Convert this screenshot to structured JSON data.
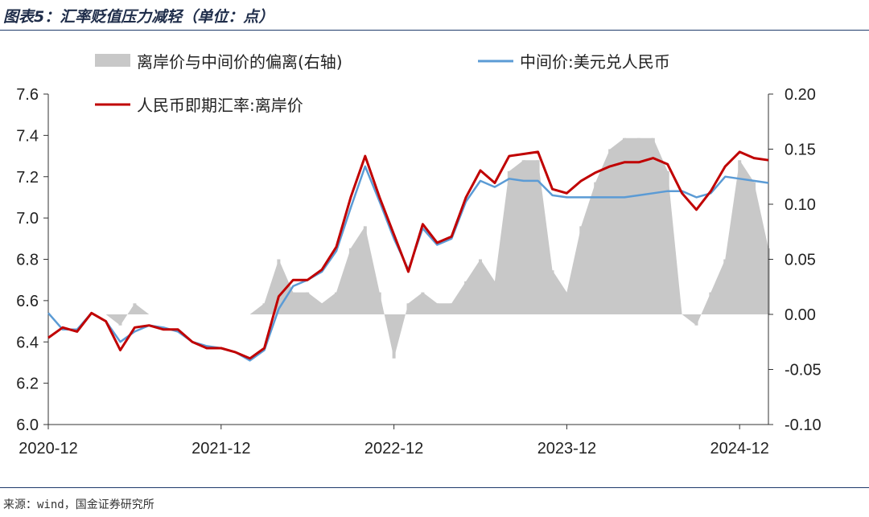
{
  "header": {
    "title": "图表5：汇率贬值压力减轻（单位：点）"
  },
  "footer": {
    "source": "来源：wind，国金证券研究所"
  },
  "colors": {
    "spread": "#c8c8c8",
    "central_parity": "#5b9bd5",
    "offshore": "#c00000",
    "rule": "#1f3a6b"
  },
  "chart_data": {
    "type": "line",
    "x_tick_labels": [
      "2020-12",
      "2021-12",
      "2022-12",
      "2023-12",
      "2024-12"
    ],
    "left_axis": {
      "ylim": [
        6.0,
        7.6
      ],
      "tick_labels": [
        "6.0",
        "6.2",
        "6.4",
        "6.6",
        "6.8",
        "7.0",
        "7.2",
        "7.4",
        "7.6"
      ]
    },
    "right_axis": {
      "ylim": [
        -0.1,
        0.2
      ],
      "tick_labels": [
        "-0.10",
        "-0.05",
        "0.00",
        "0.05",
        "0.10",
        "0.15",
        "0.20"
      ]
    },
    "legend": {
      "spread": "离岸价与中间价的偏离(右轴)",
      "central_parity": "中间价:美元兑人民币",
      "offshore": "人民币即期汇率:离岸价"
    },
    "series": [
      {
        "key": "offshore",
        "name": "人民币即期汇率:离岸价",
        "axis": "left",
        "points": [
          [
            "2020-12",
            6.42
          ],
          [
            "2021-01",
            6.47
          ],
          [
            "2021-02",
            6.45
          ],
          [
            "2021-03",
            6.54
          ],
          [
            "2021-04",
            6.5
          ],
          [
            "2021-05",
            6.36
          ],
          [
            "2021-06",
            6.47
          ],
          [
            "2021-07",
            6.48
          ],
          [
            "2021-08",
            6.46
          ],
          [
            "2021-09",
            6.46
          ],
          [
            "2021-10",
            6.4
          ],
          [
            "2021-11",
            6.37
          ],
          [
            "2021-12",
            6.37
          ],
          [
            "2022-01",
            6.35
          ],
          [
            "2022-02",
            6.32
          ],
          [
            "2022-03",
            6.37
          ],
          [
            "2022-04",
            6.62
          ],
          [
            "2022-05",
            6.7
          ],
          [
            "2022-06",
            6.7
          ],
          [
            "2022-07",
            6.75
          ],
          [
            "2022-08",
            6.86
          ],
          [
            "2022-09",
            7.1
          ],
          [
            "2022-10",
            7.3
          ],
          [
            "2022-11",
            7.1
          ],
          [
            "2022-12",
            6.92
          ],
          [
            "2023-01",
            6.74
          ],
          [
            "2023-02",
            6.97
          ],
          [
            "2023-03",
            6.88
          ],
          [
            "2023-04",
            6.91
          ],
          [
            "2023-05",
            7.1
          ],
          [
            "2023-06",
            7.23
          ],
          [
            "2023-07",
            7.17
          ],
          [
            "2023-08",
            7.3
          ],
          [
            "2023-09",
            7.31
          ],
          [
            "2023-10",
            7.32
          ],
          [
            "2023-11",
            7.14
          ],
          [
            "2023-12",
            7.12
          ],
          [
            "2024-01",
            7.18
          ],
          [
            "2024-02",
            7.22
          ],
          [
            "2024-03",
            7.25
          ],
          [
            "2024-04",
            7.27
          ],
          [
            "2024-05",
            7.27
          ],
          [
            "2024-06",
            7.29
          ],
          [
            "2024-07",
            7.26
          ],
          [
            "2024-08",
            7.12
          ],
          [
            "2024-09",
            7.04
          ],
          [
            "2024-10",
            7.13
          ],
          [
            "2024-11",
            7.25
          ],
          [
            "2024-12",
            7.32
          ],
          [
            "2025-01",
            7.29
          ],
          [
            "2025-02",
            7.28
          ]
        ]
      },
      {
        "key": "central_parity",
        "name": "中间价:美元兑人民币",
        "axis": "left",
        "points": [
          [
            "2020-12",
            6.54
          ],
          [
            "2021-01",
            6.46
          ],
          [
            "2021-02",
            6.46
          ],
          [
            "2021-03",
            6.54
          ],
          [
            "2021-04",
            6.5
          ],
          [
            "2021-05",
            6.4
          ],
          [
            "2021-06",
            6.45
          ],
          [
            "2021-07",
            6.48
          ],
          [
            "2021-08",
            6.47
          ],
          [
            "2021-09",
            6.45
          ],
          [
            "2021-10",
            6.4
          ],
          [
            "2021-11",
            6.38
          ],
          [
            "2021-12",
            6.37
          ],
          [
            "2022-01",
            6.35
          ],
          [
            "2022-02",
            6.31
          ],
          [
            "2022-03",
            6.36
          ],
          [
            "2022-04",
            6.56
          ],
          [
            "2022-05",
            6.67
          ],
          [
            "2022-06",
            6.7
          ],
          [
            "2022-07",
            6.74
          ],
          [
            "2022-08",
            6.84
          ],
          [
            "2022-09",
            7.05
          ],
          [
            "2022-10",
            7.25
          ],
          [
            "2022-11",
            7.08
          ],
          [
            "2022-12",
            6.9
          ],
          [
            "2023-01",
            6.75
          ],
          [
            "2023-02",
            6.95
          ],
          [
            "2023-03",
            6.87
          ],
          [
            "2023-04",
            6.9
          ],
          [
            "2023-05",
            7.08
          ],
          [
            "2023-06",
            7.18
          ],
          [
            "2023-07",
            7.15
          ],
          [
            "2023-08",
            7.19
          ],
          [
            "2023-09",
            7.18
          ],
          [
            "2023-10",
            7.18
          ],
          [
            "2023-11",
            7.11
          ],
          [
            "2023-12",
            7.1
          ],
          [
            "2024-01",
            7.1
          ],
          [
            "2024-02",
            7.1
          ],
          [
            "2024-03",
            7.1
          ],
          [
            "2024-04",
            7.1
          ],
          [
            "2024-05",
            7.11
          ],
          [
            "2024-06",
            7.12
          ],
          [
            "2024-07",
            7.13
          ],
          [
            "2024-08",
            7.13
          ],
          [
            "2024-09",
            7.1
          ],
          [
            "2024-10",
            7.12
          ],
          [
            "2024-11",
            7.2
          ],
          [
            "2024-12",
            7.19
          ],
          [
            "2025-01",
            7.18
          ],
          [
            "2025-02",
            7.17
          ]
        ]
      },
      {
        "key": "spread",
        "name": "离岸价与中间价的偏离(右轴)",
        "axis": "right",
        "type": "area",
        "points": [
          [
            "2020-12",
            0.0
          ],
          [
            "2021-01",
            0.0
          ],
          [
            "2021-02",
            0.0
          ],
          [
            "2021-03",
            0.0
          ],
          [
            "2021-04",
            0.0
          ],
          [
            "2021-05",
            -0.01
          ],
          [
            "2021-06",
            0.01
          ],
          [
            "2021-07",
            0.0
          ],
          [
            "2021-08",
            0.0
          ],
          [
            "2021-09",
            0.0
          ],
          [
            "2021-10",
            0.0
          ],
          [
            "2021-11",
            0.0
          ],
          [
            "2021-12",
            0.0
          ],
          [
            "2022-01",
            0.0
          ],
          [
            "2022-02",
            0.0
          ],
          [
            "2022-03",
            0.01
          ],
          [
            "2022-04",
            0.05
          ],
          [
            "2022-05",
            0.02
          ],
          [
            "2022-06",
            0.02
          ],
          [
            "2022-07",
            0.01
          ],
          [
            "2022-08",
            0.02
          ],
          [
            "2022-09",
            0.06
          ],
          [
            "2022-10",
            0.08
          ],
          [
            "2022-11",
            0.02
          ],
          [
            "2022-12",
            -0.04
          ],
          [
            "2023-01",
            0.01
          ],
          [
            "2023-02",
            0.02
          ],
          [
            "2023-03",
            0.01
          ],
          [
            "2023-04",
            0.01
          ],
          [
            "2023-05",
            0.03
          ],
          [
            "2023-06",
            0.05
          ],
          [
            "2023-07",
            0.03
          ],
          [
            "2023-08",
            0.13
          ],
          [
            "2023-09",
            0.14
          ],
          [
            "2023-10",
            0.14
          ],
          [
            "2023-11",
            0.04
          ],
          [
            "2023-12",
            0.02
          ],
          [
            "2024-01",
            0.08
          ],
          [
            "2024-02",
            0.12
          ],
          [
            "2024-03",
            0.15
          ],
          [
            "2024-04",
            0.16
          ],
          [
            "2024-05",
            0.16
          ],
          [
            "2024-06",
            0.16
          ],
          [
            "2024-07",
            0.13
          ],
          [
            "2024-08",
            0.0
          ],
          [
            "2024-09",
            -0.01
          ],
          [
            "2024-10",
            0.02
          ],
          [
            "2024-11",
            0.05
          ],
          [
            "2024-12",
            0.14
          ],
          [
            "2025-01",
            0.12
          ],
          [
            "2025-02",
            0.06
          ]
        ]
      }
    ]
  }
}
